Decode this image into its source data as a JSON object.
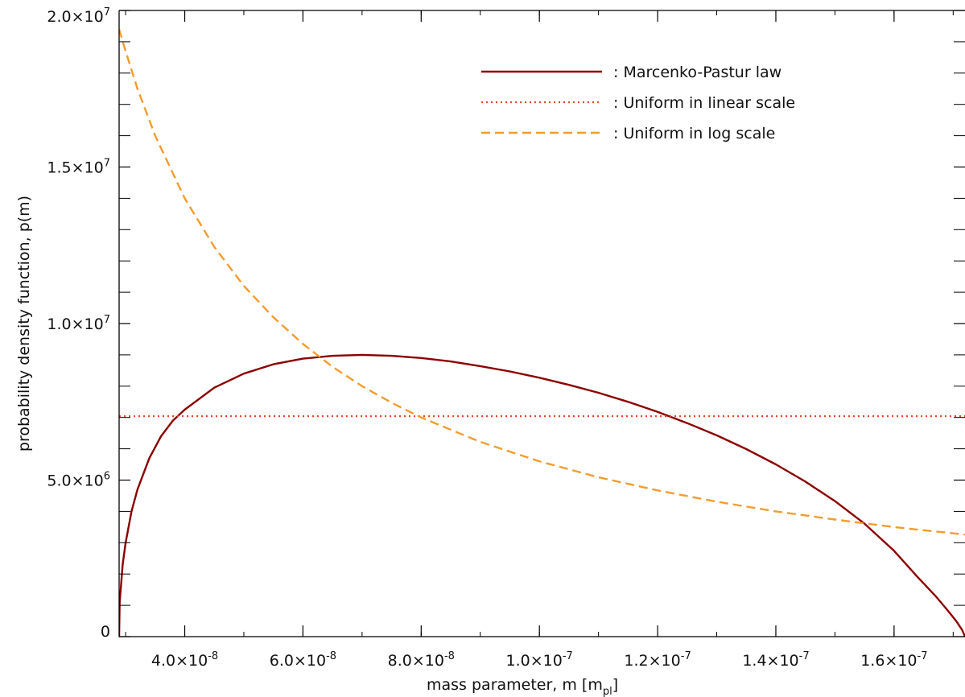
{
  "chart_data": {
    "type": "line",
    "title": "",
    "xlabel": "mass parameter, m",
    "xlabel_unit_base": "m",
    "xlabel_unit_sub": "pl",
    "ylabel": "probability density function, p(m)",
    "xlim": [
      2.89e-08,
      1.72e-07
    ],
    "ylim": [
      0,
      20000000.0
    ],
    "x_ticks": [
      {
        "value": 4e-08,
        "mantissa": "4.0",
        "exp": "-8"
      },
      {
        "value": 6e-08,
        "mantissa": "6.0",
        "exp": "-8"
      },
      {
        "value": 8e-08,
        "mantissa": "8.0",
        "exp": "-8"
      },
      {
        "value": 1e-07,
        "mantissa": "1.0",
        "exp": "-7"
      },
      {
        "value": 1.2e-07,
        "mantissa": "1.2",
        "exp": "-7"
      },
      {
        "value": 1.4e-07,
        "mantissa": "1.4",
        "exp": "-7"
      },
      {
        "value": 1.6e-07,
        "mantissa": "1.6",
        "exp": "-7"
      }
    ],
    "y_ticks": [
      {
        "value": 0,
        "mantissa": "0",
        "exp": ""
      },
      {
        "value": 5000000.0,
        "mantissa": "5.0",
        "exp": "6"
      },
      {
        "value": 10000000.0,
        "mantissa": "1.0",
        "exp": "7"
      },
      {
        "value": 15000000.0,
        "mantissa": "1.5",
        "exp": "7"
      },
      {
        "value": 20000000.0,
        "mantissa": "2.0",
        "exp": "7"
      }
    ],
    "legend_placement": "top-right",
    "series": [
      {
        "name": ": Marcenko-Pastur law",
        "style": "solid",
        "color": "#8b0000",
        "x": [
          2.89e-08,
          2.9e-08,
          2.95e-08,
          3e-08,
          3.1e-08,
          3.2e-08,
          3.4e-08,
          3.6e-08,
          3.8e-08,
          4e-08,
          4.5e-08,
          5e-08,
          5.5e-08,
          6e-08,
          6.5e-08,
          7e-08,
          7.5e-08,
          8e-08,
          8.5e-08,
          9e-08,
          9.5e-08,
          1e-07,
          1.05e-07,
          1.1e-07,
          1.15e-07,
          1.2e-07,
          1.25e-07,
          1.3e-07,
          1.35e-07,
          1.4e-07,
          1.45e-07,
          1.5e-07,
          1.55e-07,
          1.6e-07,
          1.64e-07,
          1.67e-07,
          1.69e-07,
          1.705e-07,
          1.715e-07,
          1.72e-07
        ],
        "y": [
          0,
          1100000.0,
          2300000.0,
          3000000.0,
          4000000.0,
          4700000.0,
          5700000.0,
          6400000.0,
          6900000.0,
          7250000.0,
          7950000.0,
          8400000.0,
          8700000.0,
          8880000.0,
          8970000.0,
          9000000.0,
          8970000.0,
          8900000.0,
          8790000.0,
          8640000.0,
          8470000.0,
          8270000.0,
          8040000.0,
          7790000.0,
          7500000.0,
          7180000.0,
          6820000.0,
          6430000.0,
          5990000.0,
          5500000.0,
          4950000.0,
          4330000.0,
          3610000.0,
          2740000.0,
          1900000.0,
          1300000.0,
          850000.0,
          500000.0,
          220000.0,
          0
        ]
      },
      {
        "name": ": Uniform in linear scale",
        "style": "dotted",
        "color": "#e8442a",
        "x": [
          2.89e-08,
          1.72e-07
        ],
        "y": [
          7040000.0,
          7040000.0
        ]
      },
      {
        "name": ": Uniform in log scale",
        "style": "dashed",
        "color": "#f39c2e",
        "x": [
          2.89e-08,
          3e-08,
          3.2e-08,
          3.5e-08,
          4e-08,
          4.5e-08,
          5e-08,
          5.5e-08,
          6e-08,
          6.5e-08,
          7e-08,
          7.5e-08,
          8e-08,
          9e-08,
          1e-07,
          1.1e-07,
          1.2e-07,
          1.3e-07,
          1.4e-07,
          1.5e-07,
          1.6e-07,
          1.72e-07
        ],
        "y": [
          19400000.0,
          18700000.0,
          17500000.0,
          16000000.0,
          14000000.0,
          12450000.0,
          11200000.0,
          10200000.0,
          9350000.0,
          8620000.0,
          8000000.0,
          7470000.0,
          7000000.0,
          6220000.0,
          5600000.0,
          5090000.0,
          4670000.0,
          4310000.0,
          4000000.0,
          3740000.0,
          3500000.0,
          3260000.0
        ]
      }
    ]
  }
}
